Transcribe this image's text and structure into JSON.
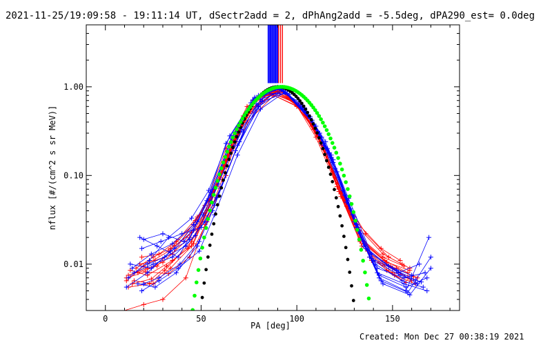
{
  "chart_data": {
    "type": "scatter",
    "title": "2021-11-25/19:09:58 - 19:11:14 UT, dSectr2add = 2, dPhAng2add = -5.5deg, dPA290_est=  0.0deg",
    "xlabel": "PA [deg]",
    "ylabel": "nflux [#/(cm^2 s sr MeV)]",
    "footer": "Created: Mon Dec 27 00:38:19 2021",
    "xlim": [
      -10,
      185
    ],
    "ylim": [
      0.003,
      5.0
    ],
    "yscale": "log",
    "grid": false,
    "xticks": [
      {
        "value": 0,
        "label": "0"
      },
      {
        "value": 50,
        "label": "50"
      },
      {
        "value": 100,
        "label": "100"
      },
      {
        "value": 150,
        "label": "150"
      }
    ],
    "yticks": [
      {
        "value": 0.01,
        "label": "0.01"
      },
      {
        "value": 0.1,
        "label": "0.10"
      },
      {
        "value": 1.0,
        "label": "1.00"
      }
    ],
    "colors": {
      "red": "#ff0000",
      "blue": "#0000ff",
      "black": "#000000",
      "green": "#00ff00"
    },
    "vertical_bars": {
      "y_range": [
        1.1,
        5.0
      ],
      "blue_x": [
        85.0,
        85.5,
        86.0,
        86.5,
        87.0,
        87.5,
        88.0,
        88.5,
        89.0,
        89.5,
        90.0
      ],
      "red_x": [
        90.5,
        91.5,
        92.5
      ]
    },
    "fit_curves": {
      "black": {
        "center": 90,
        "halfwidth": 55,
        "exponent": 6.5
      },
      "green": {
        "center": 92,
        "halfwidth": 60,
        "exponent": 5.5
      }
    },
    "red_lines": [
      [
        [
          11,
          0.0065
        ],
        [
          20,
          0.0095
        ],
        [
          33,
          0.014
        ],
        [
          45,
          0.023
        ],
        [
          52,
          0.046
        ],
        [
          63,
          0.2
        ],
        [
          74,
          0.6
        ],
        [
          88,
          0.93
        ],
        [
          101,
          0.62
        ],
        [
          110,
          0.3
        ],
        [
          121,
          0.08
        ],
        [
          133,
          0.018
        ],
        [
          146,
          0.0098
        ],
        [
          158,
          0.007
        ]
      ],
      [
        [
          13,
          0.0085
        ],
        [
          22,
          0.0075
        ],
        [
          35,
          0.011
        ],
        [
          43,
          0.015
        ],
        [
          53,
          0.04
        ],
        [
          64,
          0.16
        ],
        [
          75,
          0.52
        ],
        [
          89,
          0.88
        ],
        [
          102,
          0.58
        ],
        [
          112,
          0.26
        ],
        [
          123,
          0.058
        ],
        [
          134,
          0.016
        ],
        [
          147,
          0.0085
        ],
        [
          157,
          0.0062
        ]
      ],
      [
        [
          12,
          0.0055
        ],
        [
          23,
          0.006
        ],
        [
          31,
          0.0085
        ],
        [
          45,
          0.018
        ],
        [
          52,
          0.035
        ],
        [
          62,
          0.12
        ],
        [
          73,
          0.45
        ],
        [
          87,
          0.85
        ],
        [
          99,
          0.66
        ],
        [
          111,
          0.28
        ],
        [
          122,
          0.07
        ],
        [
          136,
          0.022
        ],
        [
          148,
          0.012
        ],
        [
          159,
          0.009
        ]
      ],
      [
        [
          16,
          0.009
        ],
        [
          25,
          0.012
        ],
        [
          34,
          0.015
        ],
        [
          46,
          0.028
        ],
        [
          54,
          0.052
        ],
        [
          66,
          0.22
        ],
        [
          76,
          0.62
        ],
        [
          90,
          0.95
        ],
        [
          103,
          0.55
        ],
        [
          113,
          0.22
        ],
        [
          124,
          0.06
        ],
        [
          135,
          0.017
        ],
        [
          149,
          0.0095
        ],
        [
          160,
          0.0065
        ]
      ],
      [
        [
          11,
          0.007
        ],
        [
          21,
          0.0082
        ],
        [
          33,
          0.0078
        ],
        [
          44,
          0.012
        ],
        [
          53,
          0.03
        ],
        [
          63,
          0.1
        ],
        [
          74,
          0.4
        ],
        [
          88,
          0.8
        ],
        [
          100,
          0.6
        ],
        [
          109,
          0.33
        ],
        [
          120,
          0.095
        ],
        [
          132,
          0.026
        ],
        [
          145,
          0.013
        ],
        [
          155,
          0.01
        ]
      ],
      [
        [
          14,
          0.006
        ],
        [
          24,
          0.0068
        ],
        [
          32,
          0.0095
        ],
        [
          46,
          0.017
        ],
        [
          55,
          0.048
        ],
        [
          65,
          0.18
        ],
        [
          75,
          0.5
        ],
        [
          89,
          0.9
        ],
        [
          101,
          0.64
        ],
        [
          111,
          0.29
        ],
        [
          122,
          0.066
        ],
        [
          133,
          0.019
        ],
        [
          146,
          0.011
        ],
        [
          158,
          0.008
        ]
      ],
      [
        [
          18,
          0.01
        ],
        [
          26,
          0.011
        ],
        [
          35,
          0.013
        ],
        [
          47,
          0.031
        ],
        [
          56,
          0.06
        ],
        [
          67,
          0.25
        ],
        [
          77,
          0.7
        ],
        [
          91,
          0.92
        ],
        [
          104,
          0.52
        ],
        [
          114,
          0.2
        ],
        [
          125,
          0.052
        ],
        [
          137,
          0.014
        ],
        [
          150,
          0.008
        ],
        [
          161,
          0.0072
        ]
      ],
      [
        [
          12,
          0.0075
        ],
        [
          22,
          0.009
        ],
        [
          30,
          0.0105
        ],
        [
          44,
          0.02
        ],
        [
          52,
          0.038
        ],
        [
          62,
          0.14
        ],
        [
          72,
          0.47
        ],
        [
          86,
          0.86
        ],
        [
          98,
          0.7
        ],
        [
          108,
          0.36
        ],
        [
          119,
          0.11
        ],
        [
          131,
          0.03
        ],
        [
          144,
          0.015
        ],
        [
          154,
          0.011
        ]
      ],
      [
        [
          17,
          0.008
        ],
        [
          27,
          0.0095
        ],
        [
          36,
          0.016
        ],
        [
          48,
          0.025
        ],
        [
          57,
          0.07
        ],
        [
          68,
          0.26
        ],
        [
          78,
          0.72
        ],
        [
          92,
          0.9
        ],
        [
          105,
          0.5
        ],
        [
          115,
          0.19
        ],
        [
          126,
          0.045
        ],
        [
          138,
          0.012
        ],
        [
          151,
          0.0075
        ],
        [
          162,
          0.006
        ]
      ],
      [
        [
          10,
          0.003
        ],
        [
          20,
          0.0035
        ],
        [
          30,
          0.004
        ],
        [
          42,
          0.007
        ],
        [
          52,
          0.028
        ],
        [
          61,
          0.09
        ],
        [
          73,
          0.42
        ],
        [
          87,
          0.82
        ],
        [
          100,
          0.61
        ],
        [
          110,
          0.27
        ],
        [
          121,
          0.075
        ],
        [
          133,
          0.02
        ],
        [
          145,
          0.012
        ],
        [
          156,
          0.0095
        ]
      ],
      [
        [
          15,
          0.0065
        ],
        [
          25,
          0.006
        ],
        [
          34,
          0.009
        ],
        [
          45,
          0.016
        ],
        [
          54,
          0.044
        ],
        [
          64,
          0.17
        ],
        [
          76,
          0.56
        ],
        [
          90,
          0.89
        ],
        [
          102,
          0.57
        ],
        [
          112,
          0.24
        ],
        [
          123,
          0.062
        ],
        [
          135,
          0.018
        ],
        [
          147,
          0.0105
        ],
        [
          159,
          0.0085
        ]
      ],
      [
        [
          19,
          0.012
        ],
        [
          28,
          0.013
        ],
        [
          37,
          0.018
        ],
        [
          48,
          0.034
        ],
        [
          58,
          0.075
        ],
        [
          69,
          0.3
        ],
        [
          79,
          0.74
        ],
        [
          93,
          0.88
        ],
        [
          106,
          0.47
        ],
        [
          116,
          0.17
        ],
        [
          127,
          0.042
        ],
        [
          139,
          0.011
        ],
        [
          152,
          0.009
        ],
        [
          163,
          0.007
        ]
      ]
    ],
    "blue_lines": [
      [
        [
          11,
          0.0055
        ],
        [
          22,
          0.008
        ],
        [
          34,
          0.014
        ],
        [
          44,
          0.019
        ],
        [
          53,
          0.052
        ],
        [
          63,
          0.23
        ],
        [
          76,
          0.66
        ],
        [
          89,
          0.98
        ],
        [
          102,
          0.66
        ],
        [
          112,
          0.3
        ],
        [
          124,
          0.068
        ],
        [
          135,
          0.016
        ],
        [
          148,
          0.0095
        ],
        [
          160,
          0.0075
        ]
      ],
      [
        [
          18,
          0.02
        ],
        [
          27,
          0.016
        ],
        [
          38,
          0.012
        ],
        [
          46,
          0.024
        ],
        [
          55,
          0.06
        ],
        [
          66,
          0.26
        ],
        [
          78,
          0.74
        ],
        [
          90,
          0.99
        ],
        [
          104,
          0.56
        ],
        [
          114,
          0.22
        ],
        [
          126,
          0.05
        ],
        [
          138,
          0.012
        ],
        [
          152,
          0.0085
        ],
        [
          163,
          0.006
        ]
      ],
      [
        [
          13,
          0.01
        ],
        [
          24,
          0.009
        ],
        [
          36,
          0.015
        ],
        [
          48,
          0.03
        ],
        [
          56,
          0.07
        ],
        [
          68,
          0.3
        ],
        [
          80,
          0.8
        ],
        [
          92,
          0.95
        ],
        [
          106,
          0.48
        ],
        [
          117,
          0.18
        ],
        [
          129,
          0.036
        ],
        [
          141,
          0.01
        ],
        [
          155,
          0.0065
        ],
        [
          166,
          0.0055
        ]
      ],
      [
        [
          20,
          0.006
        ],
        [
          28,
          0.007
        ],
        [
          39,
          0.01
        ],
        [
          49,
          0.018
        ],
        [
          57,
          0.046
        ],
        [
          69,
          0.22
        ],
        [
          81,
          0.72
        ],
        [
          93,
          0.9
        ],
        [
          107,
          0.44
        ],
        [
          118,
          0.16
        ],
        [
          130,
          0.03
        ],
        [
          142,
          0.008
        ],
        [
          156,
          0.006
        ],
        [
          168,
          0.005
        ]
      ],
      [
        [
          12,
          0.007
        ],
        [
          23,
          0.011
        ],
        [
          33,
          0.02
        ],
        [
          45,
          0.033
        ],
        [
          54,
          0.068
        ],
        [
          65,
          0.28
        ],
        [
          77,
          0.71
        ],
        [
          91,
          0.97
        ],
        [
          103,
          0.6
        ],
        [
          113,
          0.27
        ],
        [
          125,
          0.06
        ],
        [
          136,
          0.015
        ],
        [
          150,
          0.009
        ],
        [
          162,
          0.0066
        ]
      ],
      [
        [
          19,
          0.015
        ],
        [
          29,
          0.018
        ],
        [
          40,
          0.022
        ],
        [
          50,
          0.026
        ],
        [
          58,
          0.056
        ],
        [
          70,
          0.24
        ],
        [
          82,
          0.68
        ],
        [
          94,
          0.86
        ],
        [
          108,
          0.4
        ],
        [
          119,
          0.14
        ],
        [
          131,
          0.026
        ],
        [
          143,
          0.007
        ],
        [
          157,
          0.005
        ],
        [
          169,
          0.02
        ]
      ],
      [
        [
          15,
          0.008
        ],
        [
          25,
          0.01
        ],
        [
          35,
          0.012
        ],
        [
          47,
          0.021
        ],
        [
          55,
          0.05
        ],
        [
          67,
          0.21
        ],
        [
          79,
          0.64
        ],
        [
          92,
          0.93
        ],
        [
          105,
          0.52
        ],
        [
          116,
          0.2
        ],
        [
          128,
          0.042
        ],
        [
          140,
          0.011
        ],
        [
          154,
          0.0075
        ],
        [
          165,
          0.0063
        ]
      ],
      [
        [
          20,
          0.019
        ],
        [
          30,
          0.022
        ],
        [
          41,
          0.018
        ],
        [
          51,
          0.036
        ],
        [
          59,
          0.08
        ],
        [
          71,
          0.33
        ],
        [
          83,
          0.82
        ],
        [
          95,
          0.84
        ],
        [
          109,
          0.38
        ],
        [
          120,
          0.12
        ],
        [
          132,
          0.024
        ],
        [
          144,
          0.0065
        ],
        [
          158,
          0.0048
        ],
        [
          170,
          0.012
        ]
      ],
      [
        [
          17,
          0.006
        ],
        [
          26,
          0.0055
        ],
        [
          37,
          0.008
        ],
        [
          48,
          0.016
        ],
        [
          56,
          0.04
        ],
        [
          68,
          0.19
        ],
        [
          80,
          0.6
        ],
        [
          93,
          0.91
        ],
        [
          107,
          0.46
        ],
        [
          118,
          0.17
        ],
        [
          130,
          0.034
        ],
        [
          142,
          0.009
        ],
        [
          156,
          0.007
        ],
        [
          167,
          0.008
        ]
      ],
      [
        [
          14,
          0.009
        ],
        [
          24,
          0.013
        ],
        [
          35,
          0.017
        ],
        [
          46,
          0.028
        ],
        [
          55,
          0.064
        ],
        [
          66,
          0.27
        ],
        [
          78,
          0.76
        ],
        [
          91,
          0.96
        ],
        [
          104,
          0.58
        ],
        [
          115,
          0.24
        ],
        [
          127,
          0.055
        ],
        [
          139,
          0.013
        ],
        [
          153,
          0.008
        ],
        [
          164,
          0.01
        ]
      ],
      [
        [
          19,
          0.005
        ],
        [
          28,
          0.0065
        ],
        [
          38,
          0.009
        ],
        [
          49,
          0.014
        ],
        [
          57,
          0.036
        ],
        [
          69,
          0.17
        ],
        [
          81,
          0.56
        ],
        [
          94,
          0.88
        ],
        [
          108,
          0.42
        ],
        [
          119,
          0.15
        ],
        [
          131,
          0.028
        ],
        [
          143,
          0.0075
        ],
        [
          157,
          0.0055
        ],
        [
          168,
          0.007
        ]
      ],
      [
        [
          22,
          0.01
        ],
        [
          31,
          0.012
        ],
        [
          42,
          0.016
        ],
        [
          52,
          0.03
        ],
        [
          60,
          0.072
        ],
        [
          72,
          0.31
        ],
        [
          84,
          0.85
        ],
        [
          96,
          0.82
        ],
        [
          110,
          0.36
        ],
        [
          121,
          0.11
        ],
        [
          133,
          0.022
        ],
        [
          145,
          0.006
        ],
        [
          159,
          0.0045
        ],
        [
          170,
          0.009
        ]
      ]
    ]
  }
}
